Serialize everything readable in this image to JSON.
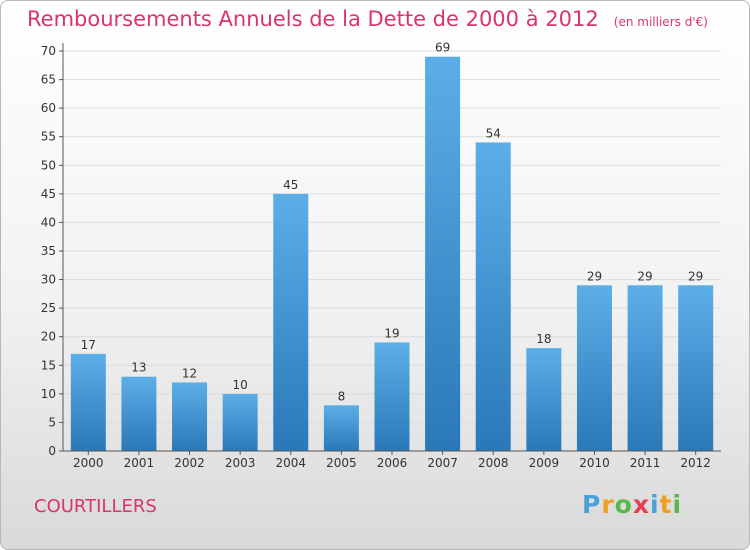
{
  "title": "Remboursements Annuels de la Dette de 2000 à 2012",
  "subtitle": "(en milliers d'€)",
  "commune": "COURTILLERS",
  "logo": {
    "letters": [
      {
        "char": "P",
        "color": "#4aa0d8"
      },
      {
        "char": "r",
        "color": "#f0a020"
      },
      {
        "char": "o",
        "color": "#58b848"
      },
      {
        "char": "x",
        "color": "#e84050"
      },
      {
        "char": "i",
        "color": "#4aa0d8"
      },
      {
        "char": "t",
        "color": "#f0a020"
      },
      {
        "char": "i",
        "color": "#58b848"
      }
    ]
  },
  "colors": {
    "bar_top": "#5caee8",
    "bar_bottom": "#2a78b8",
    "title": "#d8346e",
    "grid": "#dcdcdc",
    "axis": "#555555"
  },
  "chart_data": {
    "type": "bar",
    "categories": [
      "2000",
      "2001",
      "2002",
      "2003",
      "2004",
      "2005",
      "2006",
      "2007",
      "2008",
      "2009",
      "2010",
      "2011",
      "2012"
    ],
    "values": [
      17,
      13,
      12,
      10,
      45,
      8,
      19,
      69,
      54,
      18,
      29,
      29,
      29
    ],
    "data_labels": [
      "17",
      "13",
      "12",
      "10",
      "45",
      "8",
      "19",
      "69",
      "54",
      "18",
      "29",
      "29",
      "29"
    ],
    "ylim": [
      0,
      70
    ],
    "yticks": [
      0,
      5,
      10,
      15,
      20,
      25,
      30,
      35,
      40,
      45,
      50,
      55,
      60,
      65,
      70
    ],
    "grid": true
  }
}
